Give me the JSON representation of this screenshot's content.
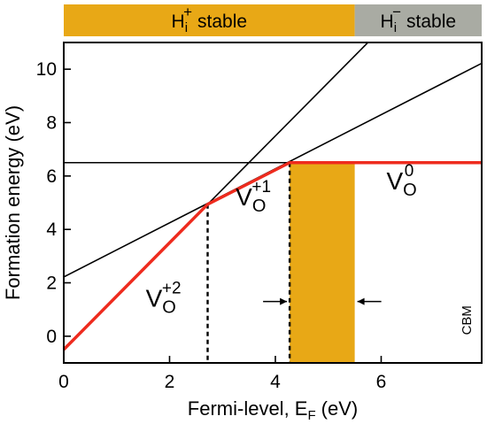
{
  "chart_data": {
    "type": "line",
    "title": "",
    "xlabel": "Fermi-level, E",
    "xlabel_sub": "F",
    "xlabel_unit": "(eV)",
    "ylabel": "Formation energy (eV)",
    "xlim": [
      0,
      7.9
    ],
    "ylim": [
      -1.0,
      11.0
    ],
    "x_ticks": [
      0,
      2,
      4,
      6
    ],
    "x_tick_labels": [
      "0",
      "2",
      "4",
      "6"
    ],
    "y_ticks": [
      0,
      2,
      4,
      6,
      8,
      10
    ],
    "y_tick_labels": [
      "0",
      "2",
      "4",
      "6",
      "8",
      "10"
    ],
    "grid": false,
    "colors": {
      "envelope": "#ee2b1e",
      "band": "#e8a816",
      "gray_band": "#a9aba3",
      "line": "#000000"
    },
    "charge_state_lines": [
      {
        "charge": 2,
        "x": [
          0,
          7.9
        ],
        "y": [
          -0.5,
          15.3
        ]
      },
      {
        "charge": 1,
        "x": [
          0,
          7.9
        ],
        "y": [
          2.22,
          10.22
        ]
      },
      {
        "charge": 0,
        "x": [
          0,
          7.9
        ],
        "y": [
          6.5,
          6.5
        ]
      }
    ],
    "minimum_envelope": {
      "x": [
        0,
        2.72,
        4.27,
        7.9
      ],
      "y": [
        -0.5,
        4.94,
        6.5,
        6.5
      ]
    },
    "transition_levels": [
      {
        "x": 2.72,
        "y": 4.94
      },
      {
        "x": 4.27,
        "y": 6.5
      }
    ],
    "shaded_region": {
      "x": [
        4.27,
        5.5
      ]
    },
    "stability_bar": [
      {
        "base": "H",
        "sub": "i",
        "sup": "+",
        "word": "stable",
        "x": [
          0,
          5.5
        ]
      },
      {
        "base": "H",
        "sub": "i",
        "sup": "−",
        "word": "stable",
        "x": [
          5.5,
          7.9
        ]
      }
    ],
    "species_labels": [
      {
        "base": "V",
        "sub": "O",
        "sup": "+2",
        "at": [
          1.55,
          1.1
        ]
      },
      {
        "base": "V",
        "sub": "O",
        "sup": "+1",
        "at": [
          3.25,
          4.9
        ]
      },
      {
        "base": "V",
        "sub": "O",
        "sup": "0",
        "at": [
          6.1,
          5.5
        ]
      }
    ],
    "annotations": [
      "CBM"
    ]
  }
}
